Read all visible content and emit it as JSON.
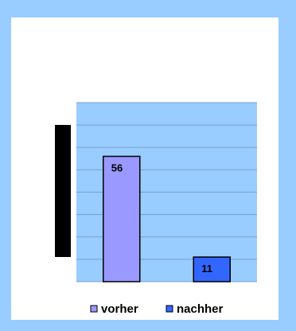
{
  "chart_data": {
    "type": "bar",
    "categories": [
      "vorher",
      "nachher"
    ],
    "values": [
      56,
      11
    ],
    "data_labels": [
      "56",
      "11"
    ],
    "ylim": [
      0,
      80
    ],
    "grid": true,
    "legend": "bottom",
    "colors": {
      "frame": "#99ccff",
      "plot_background": "#99ccff",
      "gridline": "#7a9fcc",
      "bar_vorher": "#9999ff",
      "bar_nachher": "#3366ff",
      "y_axis_band": "#000000"
    }
  },
  "legend": {
    "items": [
      {
        "label": "vorher",
        "color": "#9999ff"
      },
      {
        "label": "nachher",
        "color": "#3366ff"
      }
    ]
  }
}
